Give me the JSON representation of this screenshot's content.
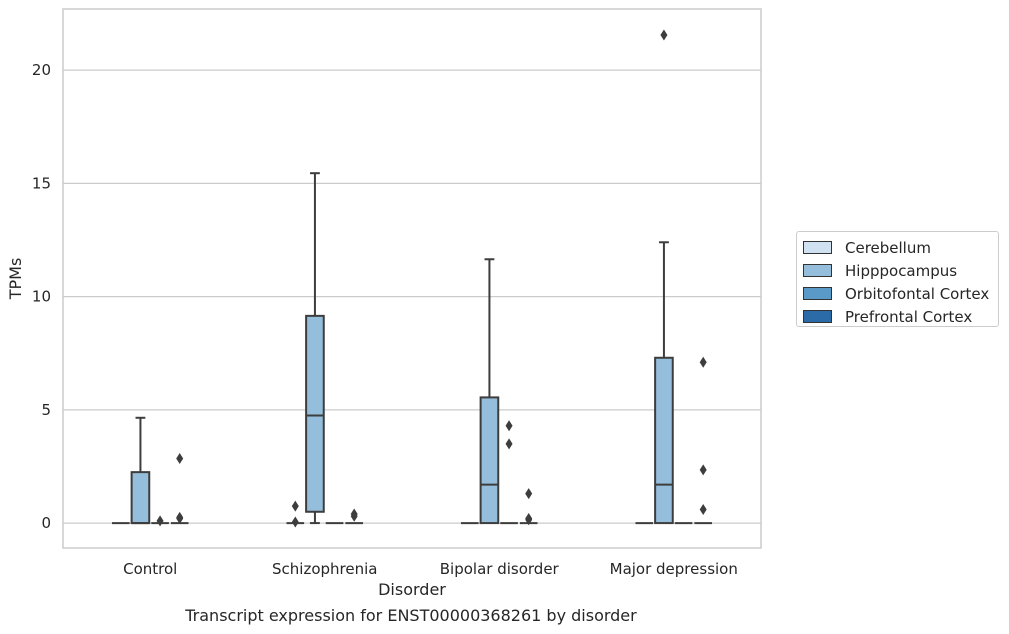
{
  "chart_data": {
    "type": "box",
    "categories": [
      "Control",
      "Schizophrenia",
      "Bipolar disorder",
      "Major depression"
    ],
    "xlabel": "Disorder",
    "ylabel": "TPMs",
    "caption": "Transcript expression for ENST00000368261 by disorder",
    "ylim": [
      -1.1,
      22.7
    ],
    "yticks": [
      0,
      5,
      10,
      15,
      20
    ],
    "grid": true,
    "legend_position": "center-right",
    "series": [
      {
        "name": "Cerebellum",
        "color": "#d0e1f2",
        "boxes": [
          {
            "whislo": 0,
            "q1": 0,
            "med": 0,
            "q3": 0,
            "whishi": 0,
            "fliers": []
          },
          {
            "whislo": 0,
            "q1": 0,
            "med": 0,
            "q3": 0,
            "whishi": 0,
            "fliers": [
              0.75,
              0.05
            ]
          },
          {
            "whislo": 0,
            "q1": 0,
            "med": 0,
            "q3": 0,
            "whishi": 0,
            "fliers": []
          },
          {
            "whislo": 0,
            "q1": 0,
            "med": 0,
            "q3": 0,
            "whishi": 0,
            "fliers": []
          }
        ]
      },
      {
        "name": "Hipppocampus",
        "color": "#94bedc",
        "boxes": [
          {
            "whislo": 0,
            "q1": 0,
            "med": 0,
            "q3": 2.25,
            "whishi": 4.65,
            "fliers": []
          },
          {
            "whislo": 0,
            "q1": 0.5,
            "med": 4.75,
            "q3": 9.15,
            "whishi": 15.45,
            "fliers": []
          },
          {
            "whislo": 0,
            "q1": 0,
            "med": 1.7,
            "q3": 5.55,
            "whishi": 11.65,
            "fliers": []
          },
          {
            "whislo": 0,
            "q1": 0,
            "med": 1.7,
            "q3": 7.3,
            "whishi": 12.4,
            "fliers": [
              21.55
            ]
          }
        ]
      },
      {
        "name": "Orbitofontal Cortex",
        "color": "#5a9ac9",
        "boxes": [
          {
            "whislo": 0,
            "q1": 0,
            "med": 0,
            "q3": 0,
            "whishi": 0,
            "fliers": [
              0.1
            ]
          },
          {
            "whislo": 0,
            "q1": 0,
            "med": 0,
            "q3": 0,
            "whishi": 0,
            "fliers": []
          },
          {
            "whislo": 0,
            "q1": 0,
            "med": 0,
            "q3": 0,
            "whishi": 0,
            "fliers": [
              4.3,
              3.5
            ]
          },
          {
            "whislo": 0,
            "q1": 0,
            "med": 0,
            "q3": 0,
            "whishi": 0,
            "fliers": []
          }
        ]
      },
      {
        "name": "Prefrontal Cortex",
        "color": "#2b6ca8",
        "boxes": [
          {
            "whislo": 0,
            "q1": 0,
            "med": 0,
            "q3": 0,
            "whishi": 0,
            "fliers": [
              2.85,
              0.25,
              0.2
            ]
          },
          {
            "whislo": 0,
            "q1": 0,
            "med": 0,
            "q3": 0,
            "whishi": 0,
            "fliers": [
              0.4,
              0.3
            ]
          },
          {
            "whislo": 0,
            "q1": 0,
            "med": 0,
            "q3": 0,
            "whishi": 0,
            "fliers": [
              1.3,
              0.2,
              0.15
            ]
          },
          {
            "whislo": 0,
            "q1": 0,
            "med": 0,
            "q3": 0,
            "whishi": 0,
            "fliers": [
              7.1,
              2.35,
              0.6
            ]
          }
        ]
      }
    ]
  }
}
